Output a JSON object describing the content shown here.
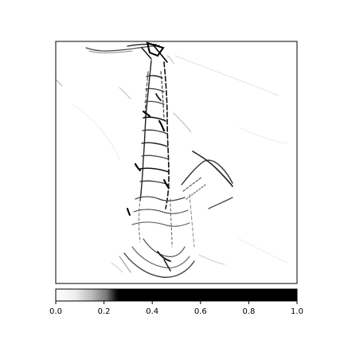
{
  "chart_data": {
    "type": "heatmap",
    "title": "",
    "xlabel": "",
    "ylabel": "",
    "image_axes": {
      "ticks_shown": false
    },
    "colorbar": {
      "orientation": "horizontal",
      "colormap": "grayscale, white to black with sharp step near 0.25",
      "range": [
        0.0,
        1.0
      ],
      "ticks": [
        0.0,
        0.2,
        0.4,
        0.6,
        0.8,
        1.0
      ],
      "tick_labels": [
        "0.0",
        "0.2",
        "0.4",
        "0.6",
        "0.8",
        "1.0"
      ],
      "stops": [
        {
          "value": 0.0,
          "color": "#ffffff"
        },
        {
          "value": 0.08,
          "color": "#eeeeee"
        },
        {
          "value": 0.15,
          "color": "#bbbbbb"
        },
        {
          "value": 0.21,
          "color": "#777777"
        },
        {
          "value": 0.245,
          "color": "#1a1a1a"
        },
        {
          "value": 0.26,
          "color": "#000000"
        },
        {
          "value": 1.0,
          "color": "#000000"
        }
      ]
    }
  }
}
